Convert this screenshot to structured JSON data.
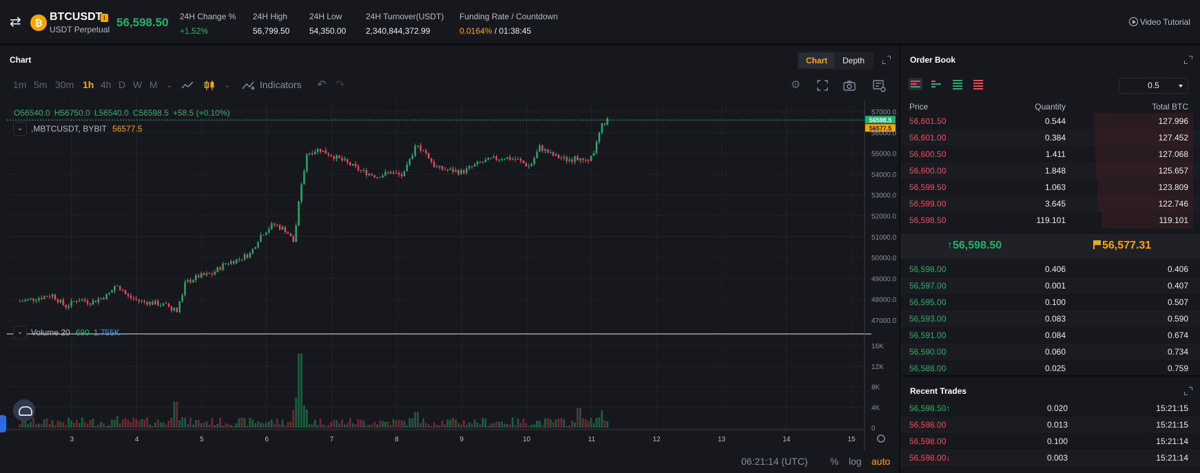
{
  "header": {
    "symbol": "BTCUSDT",
    "subtitle": "USDT Perpetual",
    "last_price": "56,598.50",
    "stats": [
      {
        "label": "24H Change %",
        "value": "+1.52%",
        "color": "#20b26c"
      },
      {
        "label": "24H High",
        "value": "56,799.50",
        "color": "#eaecef"
      },
      {
        "label": "24H Low",
        "value": "54,350.00",
        "color": "#eaecef"
      },
      {
        "label": "24H Turnover(USDT)",
        "value": "2,340,844,372.99",
        "color": "#eaecef"
      }
    ],
    "funding_label": "Funding Rate / Countdown",
    "funding_rate": "0.0164%",
    "funding_sep": " / ",
    "countdown": "01:38:45",
    "video_tutorial": "Video Tutorial"
  },
  "chart_panel": {
    "title": "Chart",
    "tabs": [
      "Chart",
      "Depth"
    ],
    "active_tab": "Chart",
    "intervals": [
      "1m",
      "5m",
      "30m",
      "1h",
      "4h",
      "D",
      "W",
      "M"
    ],
    "active_interval": "1h",
    "indicators_label": "Indicators",
    "ohlc": {
      "open": "O56540.0",
      "high": "H56750.0",
      "low": "L56540.0",
      "close": "C56598.5",
      "change": "+58.5 (+0.10%)"
    },
    "study": {
      "name": ".MBTCUSDT, BYBIT",
      "value": "56577.5"
    },
    "volume_study": {
      "name": "Volume 20",
      "value1": "690",
      "value2": "1.755K"
    },
    "status": {
      "time": "06:21:14 (UTC)",
      "pct": "%",
      "log": "log",
      "auto": "auto"
    }
  },
  "chart_data": {
    "type": "candlestick",
    "x_tick_labels": [
      "3",
      "4",
      "5",
      "6",
      "7",
      "8",
      "9",
      "10",
      "11",
      "12",
      "13",
      "14",
      "15"
    ],
    "price_axis": [
      "57000.0",
      "56000.0",
      "55000.0",
      "54000.0",
      "53000.0",
      "52000.0",
      "51000.0",
      "50000.0",
      "49000.0",
      "48000.0",
      "47000.0"
    ],
    "ylim": [
      46500,
      57400
    ],
    "volume_axis": [
      "16K",
      "12K",
      "8K",
      "4K",
      "0"
    ],
    "volume_ylim": [
      0,
      17500
    ],
    "last_price_label": "56598.5",
    "mark_price_label": "56577.5",
    "price_path": [
      [
        2.2,
        47900
      ],
      [
        2.45,
        48050
      ],
      [
        2.7,
        48200
      ],
      [
        2.9,
        47650
      ],
      [
        3.1,
        48000
      ],
      [
        3.3,
        47850
      ],
      [
        3.55,
        48200
      ],
      [
        3.7,
        48700
      ],
      [
        3.85,
        48150
      ],
      [
        4.05,
        47900
      ],
      [
        4.3,
        47800
      ],
      [
        4.5,
        47650
      ],
      [
        4.62,
        47400
      ],
      [
        4.75,
        48800
      ],
      [
        4.95,
        49100
      ],
      [
        5.15,
        49200
      ],
      [
        5.35,
        49700
      ],
      [
        5.55,
        49900
      ],
      [
        5.75,
        50200
      ],
      [
        5.9,
        51050
      ],
      [
        6.1,
        51600
      ],
      [
        6.3,
        51300
      ],
      [
        6.42,
        50700
      ],
      [
        6.5,
        52800
      ],
      [
        6.62,
        55000
      ],
      [
        6.8,
        55200
      ],
      [
        7.0,
        54900
      ],
      [
        7.2,
        54600
      ],
      [
        7.45,
        54150
      ],
      [
        7.7,
        53900
      ],
      [
        7.9,
        54100
      ],
      [
        8.1,
        53900
      ],
      [
        8.3,
        55400
      ],
      [
        8.45,
        55000
      ],
      [
        8.6,
        54300
      ],
      [
        8.8,
        54200
      ],
      [
        9.0,
        54100
      ],
      [
        9.25,
        54500
      ],
      [
        9.45,
        54700
      ],
      [
        9.65,
        54800
      ],
      [
        9.85,
        54700
      ],
      [
        10.05,
        54350
      ],
      [
        10.2,
        55300
      ],
      [
        10.4,
        54900
      ],
      [
        10.6,
        54700
      ],
      [
        10.8,
        54750
      ],
      [
        10.95,
        54500
      ],
      [
        11.05,
        55200
      ],
      [
        11.15,
        56300
      ],
      [
        11.25,
        56600
      ]
    ],
    "volume_spikes": [
      [
        3.7,
        2300
      ],
      [
        4.6,
        5100
      ],
      [
        6.52,
        14500
      ],
      [
        8.3,
        3000
      ],
      [
        10.8,
        3800
      ],
      [
        11.15,
        3400
      ]
    ]
  },
  "order_book": {
    "title": "Order Book",
    "precision": "0.5",
    "headers": {
      "price": "Price",
      "quantity": "Quantity",
      "total": "Total BTC"
    },
    "asks": [
      {
        "price": "56,601.50",
        "qty": "0.544",
        "total": "127.996",
        "depth": 0.96
      },
      {
        "price": "56,601.00",
        "qty": "0.384",
        "total": "127.452",
        "depth": 0.955
      },
      {
        "price": "56,600.50",
        "qty": "1.411",
        "total": "127.068",
        "depth": 0.95
      },
      {
        "price": "56,600.00",
        "qty": "1.848",
        "total": "125.657",
        "depth": 0.94
      },
      {
        "price": "56,599.50",
        "qty": "1.063",
        "total": "123.809",
        "depth": 0.925
      },
      {
        "price": "56,599.00",
        "qty": "3.645",
        "total": "122.746",
        "depth": 0.92
      },
      {
        "price": "56,598.50",
        "qty": "119.101",
        "total": "119.101",
        "depth": 0.89
      }
    ],
    "last_price": "56,598.50",
    "mark_price": "56,577.31",
    "bids": [
      {
        "price": "56,598.00",
        "qty": "0.406",
        "total": "0.406"
      },
      {
        "price": "56,597.00",
        "qty": "0.001",
        "total": "0.407"
      },
      {
        "price": "56,595.00",
        "qty": "0.100",
        "total": "0.507"
      },
      {
        "price": "56,593.00",
        "qty": "0.083",
        "total": "0.590"
      },
      {
        "price": "56,591.00",
        "qty": "0.084",
        "total": "0.674"
      },
      {
        "price": "56,590.00",
        "qty": "0.060",
        "total": "0.734"
      },
      {
        "price": "56,588.00",
        "qty": "0.025",
        "total": "0.759"
      }
    ]
  },
  "recent_trades": {
    "title": "Recent Trades",
    "trades": [
      {
        "price": "56,598.50",
        "dir": "up",
        "qty": "0.020",
        "time": "15:21:15"
      },
      {
        "price": "56,598.00",
        "dir": "",
        "qty": "0.013",
        "time": "15:21:15"
      },
      {
        "price": "56,598.00",
        "dir": "",
        "qty": "0.100",
        "time": "15:21:14"
      },
      {
        "price": "56,598.00",
        "dir": "down",
        "qty": "0.003",
        "time": "15:21:14"
      }
    ]
  },
  "colors": {
    "up": "#20b26c",
    "down": "#f6465d",
    "accent": "#f7a600",
    "panel": "#17181e",
    "bg": "#0b0e11"
  }
}
